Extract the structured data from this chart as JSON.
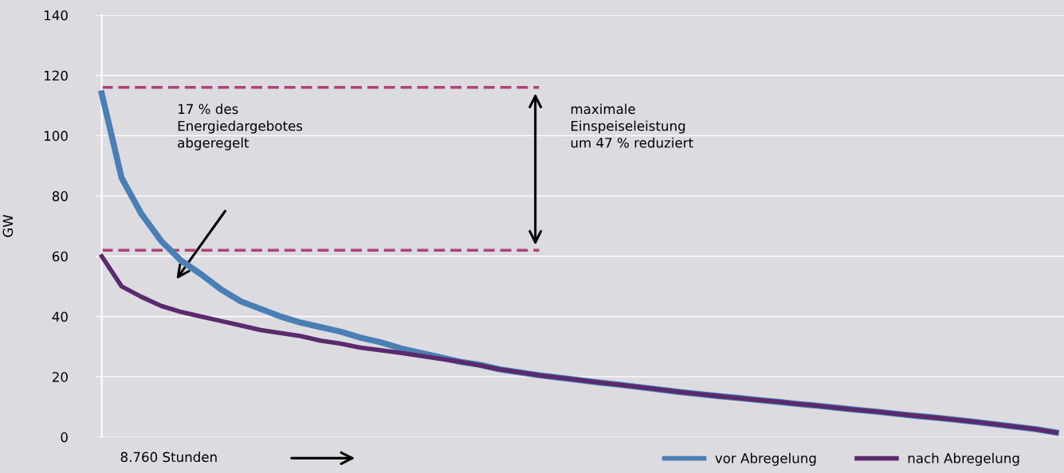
{
  "chart_data": {
    "type": "line",
    "ylabel": "GW",
    "categories": [
      null,
      null,
      null,
      null,
      null,
      null,
      null,
      null,
      null,
      null,
      null,
      null,
      null,
      null,
      null,
      null,
      null,
      null,
      null,
      null,
      null,
      null,
      null,
      null,
      null,
      null,
      null,
      null,
      null,
      null,
      null,
      null,
      null,
      null,
      null,
      null,
      null,
      null,
      null,
      null,
      null,
      null,
      null,
      null,
      null,
      null,
      null,
      null,
      null
    ],
    "series": [
      {
        "type": "line",
        "color": "#b0407a",
        "line_style": "dashed",
        "values": [
          116,
          116,
          116,
          116,
          116,
          116,
          116,
          116,
          116,
          116,
          116,
          116,
          116,
          116,
          116,
          116,
          116,
          116,
          116,
          116,
          116,
          116,
          116,
          null,
          null,
          null,
          null,
          null,
          null,
          null,
          null,
          null,
          null,
          null,
          null,
          null,
          null,
          null,
          null,
          null,
          null,
          null,
          null,
          null,
          null,
          null,
          null,
          null,
          null
        ]
      },
      {
        "type": "line",
        "color": "#b0407a",
        "line_style": "dashed",
        "values": [
          62,
          62,
          62,
          62,
          62,
          62,
          62,
          62,
          62,
          62,
          62,
          62,
          62,
          62,
          62,
          62,
          62,
          62,
          62,
          62,
          62,
          62,
          62,
          null,
          null,
          null,
          null,
          null,
          null,
          null,
          null,
          null,
          null,
          null,
          null,
          null,
          null,
          null,
          null,
          null,
          null,
          null,
          null,
          null,
          null,
          null,
          null,
          null,
          null
        ]
      },
      {
        "name": "vor Abregelung",
        "color": "#4a7fb5",
        "line_style": "solid",
        "values": [
          114,
          86,
          74,
          65,
          58.5,
          54,
          49,
          45,
          42.5,
          40,
          38,
          36.5,
          35,
          33,
          31.5,
          29.5,
          28,
          26.5,
          25,
          24,
          22.5,
          21.5,
          20.5,
          19.7,
          18.9,
          18.1,
          17.4,
          16.6,
          15.8,
          15,
          14.3,
          13.6,
          13,
          12.3,
          11.7,
          11,
          10.4,
          9.7,
          9,
          8.4,
          7.7,
          7,
          6.4,
          5.7,
          5,
          4.2,
          3.4,
          2.6,
          1.5
        ]
      },
      {
        "name": "nach Abregelung",
        "color": "#5b2a6e",
        "line_style": "solid",
        "values": [
          60,
          50,
          46.5,
          43.5,
          41.5,
          40,
          38.5,
          37,
          35.5,
          34.5,
          33.5,
          32,
          31,
          29.7,
          28.8,
          28,
          27,
          26,
          25,
          23.8,
          22.5,
          21.5,
          20.5,
          19.7,
          18.9,
          18.1,
          17.4,
          16.6,
          15.8,
          15,
          14.3,
          13.6,
          13,
          12.3,
          11.7,
          11,
          10.4,
          9.7,
          9,
          8.4,
          7.7,
          7,
          6.4,
          5.7,
          5,
          4.2,
          3.4,
          2.6,
          1.5
        ]
      }
    ],
    "ylim": [
      0,
      140
    ],
    "yticks": [
      0,
      20,
      40,
      60,
      80,
      100,
      120,
      140
    ],
    "tick_labels": "y",
    "grid": "y",
    "legend": "bottom right",
    "marker": "none",
    "annotations": [
      "17 % des\nEnergiedargebotes\nabgeregelt",
      "maximale\nEinspeiseleistung\num 47 % reduziert",
      "8.760 Stunden"
    ]
  }
}
